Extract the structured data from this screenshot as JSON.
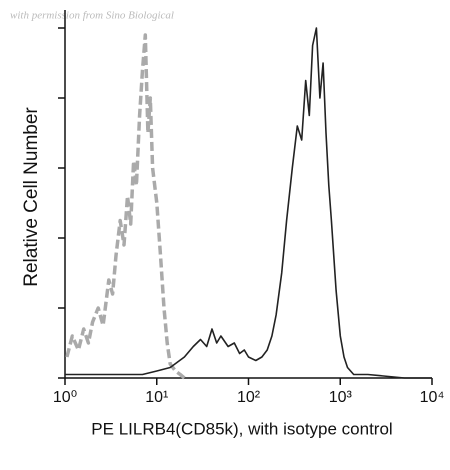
{
  "chart_data": {
    "type": "line",
    "watermark": "with permission from Sino Biological",
    "y_label": "Relative Cell Number",
    "x_label": "PE LILRB4(CD85k), with isotype control",
    "xscale": "log",
    "xlim": [
      1,
      10000
    ],
    "xticks": [
      {
        "value": 1,
        "label": "10⁰"
      },
      {
        "value": 10,
        "label": "10¹"
      },
      {
        "value": 100,
        "label": "10²"
      },
      {
        "value": 1000,
        "label": "10³"
      },
      {
        "value": 10000,
        "label": "10⁴"
      }
    ],
    "ylim": [
      0,
      104
    ],
    "yticks": [
      0,
      20,
      40,
      60,
      80,
      100
    ],
    "series": [
      {
        "name": "isotype control",
        "color": "#aaaaaa",
        "dashed": true,
        "x": [
          1.05,
          1.2,
          1.4,
          1.6,
          1.8,
          2,
          2.3,
          2.6,
          3,
          3.3,
          3.6,
          4,
          4.4,
          4.8,
          5.2,
          5.6,
          6,
          6.5,
          7,
          7.5,
          8,
          8.5,
          9,
          10,
          11,
          12,
          13,
          14,
          16,
          18,
          20
        ],
        "values": [
          6,
          12,
          8,
          14,
          10,
          16,
          20,
          15,
          28,
          24,
          35,
          45,
          38,
          52,
          44,
          62,
          55,
          75,
          88,
          98,
          70,
          80,
          60,
          50,
          35,
          20,
          10,
          4,
          2,
          1,
          0
        ]
      },
      {
        "name": "PE LILRB4(CD85k)",
        "color": "#222222",
        "dashed": false,
        "x": [
          1,
          2,
          3,
          5,
          7,
          10,
          14,
          20,
          25,
          30,
          35,
          40,
          45,
          50,
          60,
          70,
          80,
          90,
          100,
          120,
          140,
          160,
          180,
          200,
          230,
          260,
          300,
          340,
          380,
          420,
          460,
          500,
          550,
          600,
          650,
          700,
          750,
          800,
          900,
          1000,
          1100,
          1200,
          1400,
          2000,
          5000,
          10000
        ],
        "values": [
          1,
          1,
          1,
          1,
          1,
          2,
          3,
          6,
          9,
          11,
          9,
          14,
          10,
          12,
          9,
          10,
          7,
          8,
          6,
          5,
          6,
          8,
          12,
          18,
          30,
          45,
          60,
          72,
          68,
          85,
          75,
          95,
          100,
          80,
          90,
          70,
          55,
          45,
          25,
          12,
          6,
          3,
          1,
          1,
          0,
          0
        ]
      }
    ]
  }
}
